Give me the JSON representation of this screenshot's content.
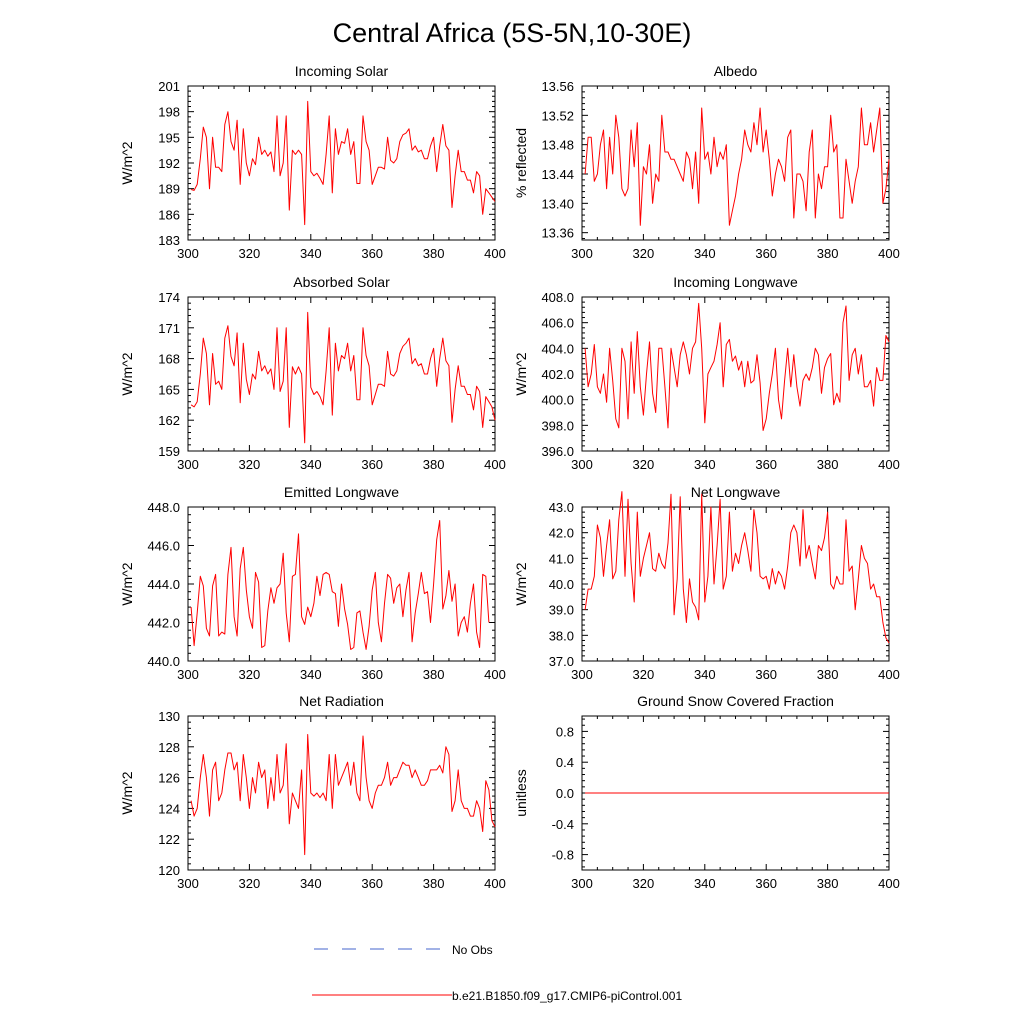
{
  "figure_title": "Central Africa (5S-5N,10-30E)",
  "colors": {
    "model": "#ff0000",
    "obs": "#4466cc",
    "axis": "#000000"
  },
  "legend": {
    "obs_label": "No Obs",
    "model_label": "b.e21.B1850.f09_g17.CMIP6-piControl.001"
  },
  "chart_data": [
    {
      "type": "line",
      "title": "Incoming Solar",
      "ylabel": "W/m^2",
      "x_start": 301,
      "xlim": [
        300,
        400
      ],
      "ylim": [
        183,
        201
      ],
      "yticks": [
        183,
        186,
        189,
        192,
        195,
        198,
        201
      ],
      "ytick_labels": [
        "183",
        "186",
        "189",
        "192",
        "195",
        "198",
        "201"
      ],
      "xticks": [
        300,
        320,
        340,
        360,
        380,
        400
      ],
      "xtick_labels": [
        "300",
        "320",
        "340",
        "360",
        "380",
        "400"
      ],
      "values": [
        188.9,
        188.8,
        189.5,
        192.5,
        196.2,
        195.0,
        189.0,
        195.0,
        191.5,
        191.5,
        191.0,
        196.5,
        198.0,
        194.5,
        193.5,
        197.0,
        189.5,
        196.0,
        192.0,
        190.5,
        192.5,
        191.8,
        195.0,
        193.0,
        193.5,
        192.8,
        193.3,
        191.0,
        197.5,
        190.5,
        192.0,
        197.5,
        186.5,
        193.5,
        193.0,
        193.5,
        193.0,
        184.8,
        199.2,
        191.0,
        190.5,
        190.8,
        190.2,
        189.5,
        193.0,
        197.5,
        188.5,
        196.0,
        193.0,
        194.5,
        194.3,
        196.0,
        193.0,
        194.5,
        189.6,
        189.6,
        197.5,
        194.5,
        193.5,
        189.5,
        190.5,
        191.5,
        191.5,
        191.3,
        195.0,
        192.3,
        192.0,
        192.5,
        194.5,
        195.3,
        195.5,
        196.0,
        193.5,
        194.0,
        193.3,
        193.5,
        192.5,
        192.5,
        194.0,
        195.0,
        191.0,
        194.0,
        196.5,
        194.0,
        193.5,
        186.8,
        190.5,
        193.5,
        191.0,
        191.0,
        190.0,
        190.0,
        188.5,
        191.0,
        190.5,
        186.0,
        189.0,
        188.5,
        188.0,
        187.5
      ]
    },
    {
      "type": "line",
      "title": "Albedo",
      "ylabel": "% reflected",
      "x_start": 301,
      "xlim": [
        300,
        400
      ],
      "ylim": [
        13.35,
        13.56
      ],
      "yticks": [
        13.36,
        13.4,
        13.44,
        13.48,
        13.52,
        13.56
      ],
      "ytick_labels": [
        "13.36",
        "13.40",
        "13.44",
        "13.48",
        "13.52",
        "13.56"
      ],
      "xticks": [
        300,
        320,
        340,
        360,
        380,
        400
      ],
      "xtick_labels": [
        "300",
        "320",
        "340",
        "360",
        "380",
        "400"
      ],
      "values": [
        13.44,
        13.49,
        13.49,
        13.43,
        13.44,
        13.48,
        13.5,
        13.42,
        13.49,
        13.44,
        13.52,
        13.49,
        13.42,
        13.41,
        13.42,
        13.5,
        13.45,
        13.51,
        13.37,
        13.45,
        13.44,
        13.48,
        13.4,
        13.44,
        13.43,
        13.52,
        13.47,
        13.47,
        13.46,
        13.46,
        13.45,
        13.44,
        13.43,
        13.47,
        13.46,
        13.42,
        13.47,
        13.4,
        13.53,
        13.46,
        13.47,
        13.44,
        13.49,
        13.45,
        13.47,
        13.46,
        13.48,
        13.37,
        13.39,
        13.41,
        13.44,
        13.46,
        13.5,
        13.48,
        13.47,
        13.51,
        13.48,
        13.53,
        13.47,
        13.5,
        13.46,
        13.41,
        13.44,
        13.46,
        13.45,
        13.43,
        13.49,
        13.5,
        13.38,
        13.44,
        13.44,
        13.43,
        13.39,
        13.47,
        13.5,
        13.38,
        13.44,
        13.42,
        13.45,
        13.45,
        13.52,
        13.47,
        13.48,
        13.38,
        13.38,
        13.46,
        13.43,
        13.4,
        13.43,
        13.45,
        13.53,
        13.48,
        13.48,
        13.51,
        13.47,
        13.5,
        13.53,
        13.4,
        13.42,
        13.46
      ]
    },
    {
      "type": "line",
      "title": "Absorbed Solar",
      "ylabel": "W/m^2",
      "x_start": 301,
      "xlim": [
        300,
        400
      ],
      "ylim": [
        159,
        174
      ],
      "yticks": [
        159,
        162,
        165,
        168,
        171,
        174
      ],
      "ytick_labels": [
        "159",
        "162",
        "165",
        "168",
        "171",
        "174"
      ],
      "xticks": [
        300,
        320,
        340,
        360,
        380,
        400
      ],
      "xtick_labels": [
        "300",
        "320",
        "340",
        "360",
        "380",
        "400"
      ],
      "values": [
        163.5,
        163.3,
        163.8,
        166.5,
        170.0,
        168.5,
        163.5,
        168.5,
        165.5,
        165.8,
        165.0,
        170.0,
        171.2,
        168.2,
        167.3,
        170.5,
        163.7,
        169.5,
        166.0,
        164.5,
        166.5,
        166.0,
        168.7,
        166.8,
        167.3,
        166.5,
        167.0,
        165.0,
        171.0,
        164.8,
        165.8,
        171.0,
        161.3,
        167.2,
        166.5,
        167.2,
        166.5,
        159.8,
        172.5,
        165.2,
        164.5,
        164.8,
        164.3,
        163.5,
        166.8,
        171.0,
        162.5,
        169.5,
        166.8,
        168.3,
        168.0,
        169.5,
        166.8,
        168.3,
        164.0,
        164.0,
        171.0,
        168.3,
        167.3,
        163.5,
        164.5,
        165.5,
        165.5,
        165.3,
        168.7,
        166.5,
        166.3,
        166.8,
        168.5,
        169.2,
        169.5,
        170.0,
        167.5,
        168.0,
        167.3,
        167.5,
        166.5,
        166.5,
        168.0,
        169.0,
        165.3,
        168.0,
        170.0,
        167.8,
        167.3,
        161.8,
        165.0,
        167.3,
        165.3,
        165.3,
        164.5,
        164.5,
        163.0,
        165.3,
        164.8,
        161.3,
        164.3,
        163.8,
        163.3,
        162.0
      ]
    },
    {
      "type": "line",
      "title": "Incoming Longwave",
      "ylabel": "W/m^2",
      "x_start": 301,
      "xlim": [
        300,
        400
      ],
      "ylim": [
        396,
        408
      ],
      "yticks": [
        396,
        398,
        400,
        402,
        404,
        406,
        408
      ],
      "ytick_labels": [
        "396.0",
        "398.0",
        "400.0",
        "402.0",
        "404.0",
        "406.0",
        "408.0"
      ],
      "xticks": [
        300,
        320,
        340,
        360,
        380,
        400
      ],
      "xtick_labels": [
        "300",
        "320",
        "340",
        "360",
        "380",
        "400"
      ],
      "values": [
        404.0,
        401.0,
        402.0,
        404.3,
        401.0,
        400.5,
        402.0,
        399.8,
        404.0,
        401.5,
        398.5,
        397.8,
        404.0,
        403.0,
        398.5,
        404.5,
        400.5,
        405.3,
        401.0,
        398.8,
        402.0,
        404.5,
        400.5,
        399.0,
        404.0,
        404.0,
        401.0,
        397.8,
        404.0,
        402.5,
        401.0,
        403.5,
        404.5,
        403.5,
        402.0,
        404.0,
        404.5,
        407.5,
        404.0,
        398.2,
        402.0,
        402.5,
        403.0,
        404.3,
        406.0,
        401.0,
        404.3,
        404.7,
        403.0,
        403.4,
        402.3,
        403.0,
        401.0,
        403.0,
        401.3,
        401.5,
        403.5,
        401.3,
        397.6,
        398.5,
        400.5,
        402.0,
        404.0,
        400.0,
        398.5,
        401.5,
        404.0,
        401.0,
        403.5,
        401.0,
        399.5,
        401.5,
        402.0,
        401.5,
        402.5,
        404.0,
        403.5,
        400.5,
        402.5,
        403.2,
        403.6,
        399.6,
        400.5,
        399.8,
        406.0,
        407.3,
        401.5,
        403.5,
        404.0,
        402.0,
        403.5,
        401.0,
        401.0,
        401.5,
        399.5,
        402.5,
        401.5,
        401.5,
        405.0,
        404.5
      ]
    },
    {
      "type": "line",
      "title": "Emitted Longwave",
      "ylabel": "W/m^2",
      "x_start": 301,
      "xlim": [
        300,
        400
      ],
      "ylim": [
        440,
        448
      ],
      "yticks": [
        440,
        442,
        444,
        446,
        448
      ],
      "ytick_labels": [
        "440.0",
        "442.0",
        "444.0",
        "446.0",
        "448.0"
      ],
      "xticks": [
        300,
        320,
        340,
        360,
        380,
        400
      ],
      "xtick_labels": [
        "300",
        "320",
        "340",
        "360",
        "380",
        "400"
      ],
      "values": [
        442.8,
        440.8,
        442.5,
        444.4,
        443.9,
        441.7,
        441.3,
        443.9,
        444.5,
        441.3,
        441.5,
        441.4,
        444.5,
        445.9,
        442.3,
        441.3,
        444.8,
        445.9,
        443.7,
        442.3,
        441.7,
        444.6,
        444.1,
        440.7,
        440.8,
        442.6,
        443.8,
        443.0,
        443.8,
        444.0,
        445.6,
        442.5,
        441.0,
        444.4,
        444.5,
        446.6,
        442.3,
        441.9,
        442.8,
        442.3,
        443.0,
        444.4,
        443.4,
        444.5,
        444.6,
        444.5,
        443.6,
        443.5,
        441.8,
        444.0,
        442.7,
        441.9,
        440.6,
        440.7,
        442.5,
        442.6,
        441.5,
        440.6,
        441.8,
        443.7,
        444.6,
        442.0,
        441.0,
        443.0,
        444.5,
        444.3,
        443.0,
        443.8,
        444.0,
        442.3,
        443.7,
        444.6,
        441.0,
        442.5,
        443.5,
        444.6,
        443.5,
        443.6,
        442.0,
        444.0,
        446.3,
        447.3,
        442.7,
        443.4,
        444.7,
        443.1,
        444.0,
        441.3,
        442.0,
        442.3,
        441.5,
        443.0,
        444.0,
        441.5,
        440.7,
        444.5,
        444.4,
        442.0
      ]
    },
    {
      "type": "line",
      "title": "Net Longwave",
      "ylabel": "W/m^2",
      "x_start": 301,
      "xlim": [
        300,
        400
      ],
      "ylim": [
        37,
        43
      ],
      "yticks": [
        37,
        38,
        39,
        40,
        41,
        42,
        43
      ],
      "ytick_labels": [
        "37.0",
        "38.0",
        "39.0",
        "40.0",
        "41.0",
        "42.0",
        "43.0"
      ],
      "xticks": [
        300,
        320,
        340,
        360,
        380,
        400
      ],
      "xtick_labels": [
        "300",
        "320",
        "340",
        "360",
        "380",
        "400"
      ],
      "values": [
        39.0,
        39.8,
        39.8,
        40.3,
        42.3,
        41.8,
        40.3,
        41.5,
        42.5,
        40.2,
        40.5,
        42.5,
        43.6,
        40.3,
        43.3,
        40.8,
        39.3,
        42.8,
        40.3,
        41.0,
        41.5,
        42.0,
        40.6,
        40.5,
        41.2,
        40.8,
        40.6,
        41.6,
        43.5,
        38.8,
        40.2,
        43.4,
        39.8,
        38.5,
        40.2,
        39.3,
        39.1,
        38.6,
        43.5,
        39.3,
        40.3,
        43.0,
        40.0,
        41.5,
        43.3,
        39.8,
        40.3,
        42.8,
        40.5,
        41.2,
        40.8,
        41.5,
        42.0,
        41.3,
        40.5,
        42.9,
        42.0,
        40.3,
        40.2,
        40.3,
        39.8,
        40.6,
        40.0,
        40.5,
        40.3,
        39.8,
        40.7,
        42.0,
        42.3,
        42.0,
        40.7,
        42.9,
        41.0,
        41.5,
        40.8,
        40.2,
        41.5,
        41.3,
        41.8,
        42.8,
        40.0,
        39.8,
        40.3,
        40.0,
        40.0,
        42.5,
        40.5,
        40.7,
        39.0,
        40.2,
        41.5,
        41.0,
        40.8,
        39.8,
        40.0,
        39.5,
        39.5,
        38.5,
        37.9,
        37.7
      ]
    },
    {
      "type": "line",
      "title": "Net Radiation",
      "ylabel": "W/m^2",
      "x_start": 301,
      "xlim": [
        300,
        400
      ],
      "ylim": [
        120,
        130
      ],
      "yticks": [
        120,
        122,
        124,
        126,
        128,
        130
      ],
      "ytick_labels": [
        "120",
        "122",
        "124",
        "126",
        "128",
        "130"
      ],
      "xticks": [
        300,
        320,
        340,
        360,
        380,
        400
      ],
      "xtick_labels": [
        "300",
        "320",
        "340",
        "360",
        "380",
        "400"
      ],
      "values": [
        124.5,
        123.5,
        124.0,
        126.0,
        127.5,
        126.0,
        123.5,
        126.5,
        127.0,
        124.5,
        125.0,
        126.5,
        127.6,
        127.6,
        126.5,
        127.0,
        124.5,
        127.5,
        126.0,
        124.0,
        126.0,
        125.0,
        127.0,
        126.0,
        126.5,
        124.0,
        126.0,
        124.5,
        127.5,
        125.0,
        125.5,
        128.2,
        123.0,
        125.0,
        124.5,
        124.0,
        126.5,
        121.0,
        128.8,
        125.0,
        124.8,
        125.0,
        124.7,
        125.0,
        124.5,
        127.5,
        124.0,
        127.5,
        125.5,
        126.0,
        126.5,
        127.0,
        125.5,
        127.0,
        125.0,
        124.5,
        128.7,
        126.0,
        124.5,
        124.0,
        125.0,
        125.5,
        125.5,
        126.0,
        127.0,
        125.5,
        126.0,
        126.0,
        126.5,
        127.0,
        126.8,
        126.8,
        126.0,
        126.5,
        126.0,
        125.5,
        125.5,
        125.8,
        126.5,
        126.5,
        126.5,
        126.8,
        126.3,
        128.0,
        127.5,
        123.8,
        124.5,
        126.5,
        124.5,
        124.0,
        124.0,
        123.5,
        123.5,
        124.5,
        124.0,
        122.5,
        125.8,
        125.2,
        123.2,
        122.8
      ]
    },
    {
      "type": "line",
      "title": "Ground Snow Covered Fraction",
      "ylabel": "unitless",
      "x_start": 301,
      "xlim": [
        300,
        400
      ],
      "ylim": [
        -1.0,
        1.0
      ],
      "yticks": [
        -0.8,
        -0.4,
        0.0,
        0.4,
        0.8
      ],
      "ytick_labels": [
        "-0.8",
        "-0.4",
        "0.0",
        "0.4",
        "0.8"
      ],
      "xticks": [
        300,
        320,
        340,
        360,
        380,
        400
      ],
      "xtick_labels": [
        "300",
        "320",
        "340",
        "360",
        "380",
        "400"
      ],
      "constant_value": 0.0
    }
  ]
}
